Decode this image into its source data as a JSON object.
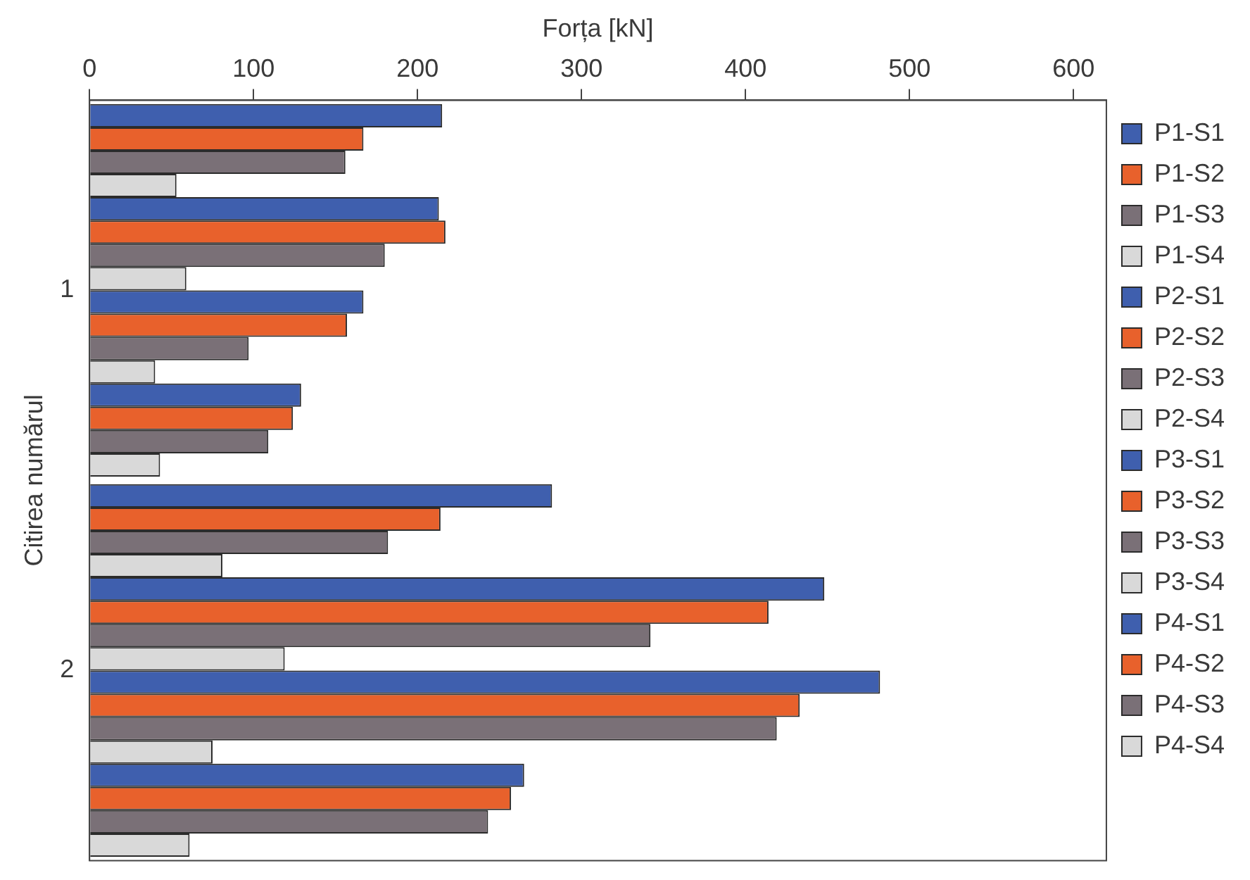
{
  "chart_data": {
    "type": "bar",
    "orientation": "horizontal",
    "xlabel": "Forța [kN]",
    "ylabel": "Citirea numărul",
    "categories": [
      "1",
      "2"
    ],
    "xlim": [
      0,
      620
    ],
    "xticks": [
      0,
      100,
      200,
      300,
      400,
      500,
      600
    ],
    "grid": false,
    "legend": "right",
    "series": [
      {
        "name": "P1-S1",
        "color": "#3f5fae",
        "values": [
          215,
          282
        ]
      },
      {
        "name": "P1-S2",
        "color": "#e8612c",
        "values": [
          167,
          214
        ]
      },
      {
        "name": "P1-S3",
        "color": "#7a7077",
        "values": [
          156,
          182
        ]
      },
      {
        "name": "P1-S4",
        "color": "#d9d9d9",
        "values": [
          53,
          81
        ]
      },
      {
        "name": "P2-S1",
        "color": "#3f5fae",
        "values": [
          213,
          448
        ]
      },
      {
        "name": "P2-S2",
        "color": "#e8612c",
        "values": [
          217,
          414
        ]
      },
      {
        "name": "P2-S3",
        "color": "#7a7077",
        "values": [
          180,
          342
        ]
      },
      {
        "name": "P2-S4",
        "color": "#d9d9d9",
        "values": [
          59,
          119
        ]
      },
      {
        "name": "P3-S1",
        "color": "#3f5fae",
        "values": [
          167,
          482
        ]
      },
      {
        "name": "P3-S2",
        "color": "#e8612c",
        "values": [
          157,
          433
        ]
      },
      {
        "name": "P3-S3",
        "color": "#7a7077",
        "values": [
          97,
          419
        ]
      },
      {
        "name": "P3-S4",
        "color": "#d9d9d9",
        "values": [
          40,
          75
        ]
      },
      {
        "name": "P4-S1",
        "color": "#3f5fae",
        "values": [
          129,
          265
        ]
      },
      {
        "name": "P4-S2",
        "color": "#e8612c",
        "values": [
          124,
          257
        ]
      },
      {
        "name": "P4-S3",
        "color": "#7a7077",
        "values": [
          109,
          243
        ]
      },
      {
        "name": "P4-S4",
        "color": "#d9d9d9",
        "values": [
          43,
          61
        ]
      }
    ]
  }
}
